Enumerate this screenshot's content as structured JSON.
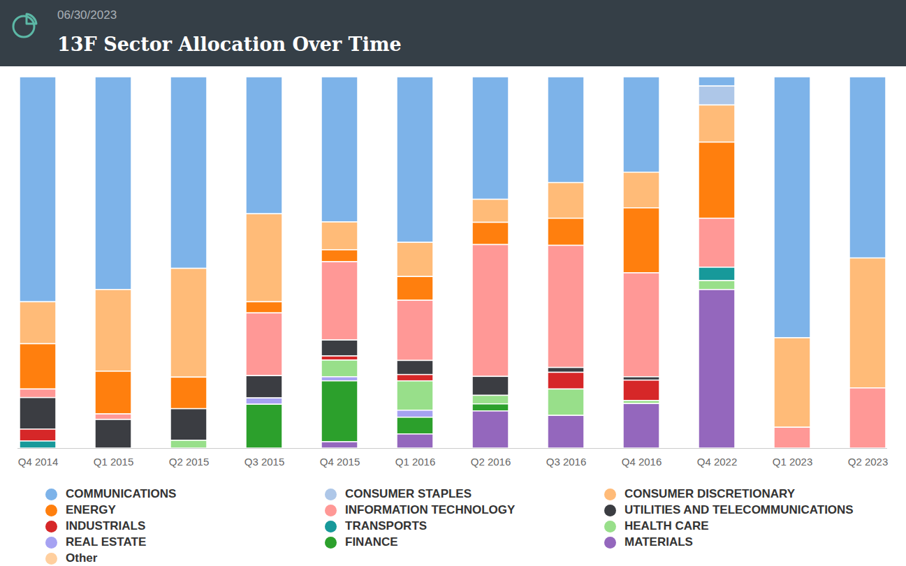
{
  "chart_data": {
    "type": "bar",
    "stacked": true,
    "title": "13F Sector Allocation Over Time",
    "subtitle": "06/30/2023",
    "categories": [
      "Q4 2014",
      "Q1 2015",
      "Q2 2015",
      "Q3 2015",
      "Q4 2015",
      "Q1 2016",
      "Q2 2016",
      "Q3 2016",
      "Q4 2016",
      "Q4 2022",
      "Q1 2023",
      "Q2 2023"
    ],
    "ylim": [
      0,
      100
    ],
    "tick_labels": "x",
    "grid": false,
    "legend": "bottom",
    "series": [
      {
        "name": "COMMUNICATIONS",
        "color": "#7db3e9",
        "values": [
          60.6,
          57.3,
          51.6,
          36.9,
          39.1,
          44.6,
          33.0,
          28.5,
          25.7,
          2.5,
          70.3,
          48.8
        ]
      },
      {
        "name": "CONSUMER STAPLES",
        "color": "#aec7e8",
        "values": [
          0,
          0,
          0,
          0,
          0,
          0,
          0,
          0,
          0,
          5.1,
          0,
          0
        ]
      },
      {
        "name": "CONSUMER DISCRETIONARY",
        "color": "#ffbb78",
        "values": [
          11.3,
          22.0,
          29.3,
          23.7,
          7.5,
          9.2,
          6.2,
          9.6,
          9.6,
          10.0,
          24.1,
          35.0
        ]
      },
      {
        "name": "ENERGY",
        "color": "#ff7f0e",
        "values": [
          12.2,
          11.5,
          8.5,
          3.0,
          3.2,
          6.4,
          6.0,
          7.3,
          17.5,
          20.5,
          0,
          0
        ]
      },
      {
        "name": "INFORMATION TECHNOLOGY",
        "color": "#ff9896",
        "values": [
          2.3,
          1.5,
          0,
          16.9,
          21.1,
          16.2,
          35.5,
          32.9,
          28.0,
          13.2,
          5.6,
          16.2
        ]
      },
      {
        "name": "UTILITIES AND TELECOMMUNICATIONS",
        "color": "#3b3d42",
        "values": [
          8.5,
          7.7,
          8.5,
          6.0,
          4.3,
          3.8,
          5.1,
          1.3,
          0.9,
          0,
          0,
          0
        ]
      },
      {
        "name": "INDUSTRIALS",
        "color": "#d62728",
        "values": [
          3.2,
          0,
          0,
          0,
          1.1,
          1.7,
          0,
          4.5,
          5.5,
          0,
          0,
          0
        ]
      },
      {
        "name": "TRANSPORTS",
        "color": "#17999a",
        "values": [
          1.9,
          0,
          0,
          0,
          0,
          0,
          0,
          0,
          0,
          3.6,
          0,
          0
        ]
      },
      {
        "name": "HEALTH CARE",
        "color": "#98df8a",
        "values": [
          0,
          0,
          2.1,
          0,
          4.5,
          7.9,
          2.3,
          7.1,
          0.8,
          2.4,
          0,
          0
        ]
      },
      {
        "name": "REAL ESTATE",
        "color": "#a6a2f2",
        "values": [
          0,
          0,
          0,
          1.7,
          1.1,
          1.9,
          0,
          0,
          0,
          0,
          0,
          0
        ]
      },
      {
        "name": "FINANCE",
        "color": "#2ca02c",
        "values": [
          0,
          0,
          0,
          11.8,
          16.4,
          4.5,
          1.9,
          0,
          0,
          0,
          0,
          0
        ]
      },
      {
        "name": "MATERIALS",
        "color": "#9467bd",
        "values": [
          0,
          0,
          0,
          0,
          1.7,
          3.8,
          10.0,
          8.8,
          12.0,
          42.7,
          0,
          0
        ]
      },
      {
        "name": "Other",
        "color": "#ffcf9e",
        "values": [
          0,
          0,
          0,
          0,
          0,
          0,
          0,
          0,
          0,
          0,
          0,
          0
        ]
      }
    ]
  }
}
